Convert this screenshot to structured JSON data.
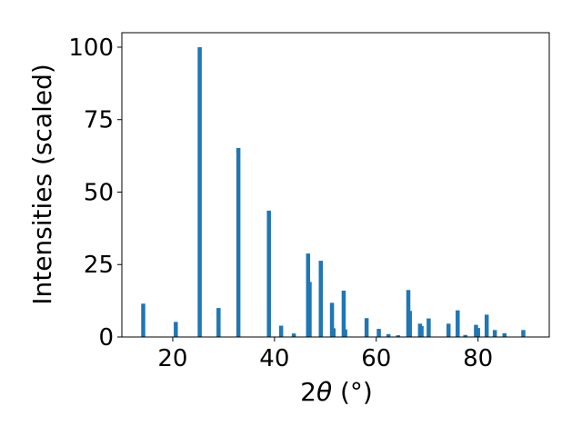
{
  "chart_data": {
    "type": "bar",
    "title": "",
    "xlabel_main": "2",
    "xlabel_theta": "θ",
    "xlabel_unit": " (°)",
    "ylabel": "Intensities (scaled)",
    "xlim": [
      10,
      94
    ],
    "ylim": [
      0,
      105
    ],
    "xticks": [
      20,
      40,
      60,
      80
    ],
    "yticks": [
      0,
      25,
      50,
      75,
      100
    ],
    "bar_color": "#1f77b4",
    "grid": false,
    "peaks": [
      {
        "x": 14.2,
        "y": 11.5
      },
      {
        "x": 20.6,
        "y": 5.2
      },
      {
        "x": 25.3,
        "y": 100
      },
      {
        "x": 29.0,
        "y": 10.0
      },
      {
        "x": 32.9,
        "y": 65.2
      },
      {
        "x": 38.9,
        "y": 43.6
      },
      {
        "x": 41.3,
        "y": 3.9
      },
      {
        "x": 43.8,
        "y": 1.2
      },
      {
        "x": 46.6,
        "y": 28.8
      },
      {
        "x": 46.9,
        "y": 19.0
      },
      {
        "x": 49.1,
        "y": 26.3
      },
      {
        "x": 51.3,
        "y": 11.8
      },
      {
        "x": 51.6,
        "y": 3.0
      },
      {
        "x": 53.6,
        "y": 16.0
      },
      {
        "x": 53.9,
        "y": 2.6
      },
      {
        "x": 58.1,
        "y": 6.5
      },
      {
        "x": 60.5,
        "y": 2.8
      },
      {
        "x": 62.4,
        "y": 1.0
      },
      {
        "x": 64.3,
        "y": 0.6
      },
      {
        "x": 66.3,
        "y": 16.2
      },
      {
        "x": 66.6,
        "y": 9.0
      },
      {
        "x": 68.6,
        "y": 4.6
      },
      {
        "x": 68.9,
        "y": 3.8
      },
      {
        "x": 70.3,
        "y": 6.4
      },
      {
        "x": 74.2,
        "y": 4.6
      },
      {
        "x": 76.0,
        "y": 9.2
      },
      {
        "x": 77.5,
        "y": 0.7
      },
      {
        "x": 79.6,
        "y": 4.2
      },
      {
        "x": 80.0,
        "y": 3.1
      },
      {
        "x": 81.7,
        "y": 7.7
      },
      {
        "x": 83.3,
        "y": 2.4
      },
      {
        "x": 85.2,
        "y": 1.3
      },
      {
        "x": 88.9,
        "y": 2.4
      }
    ]
  }
}
